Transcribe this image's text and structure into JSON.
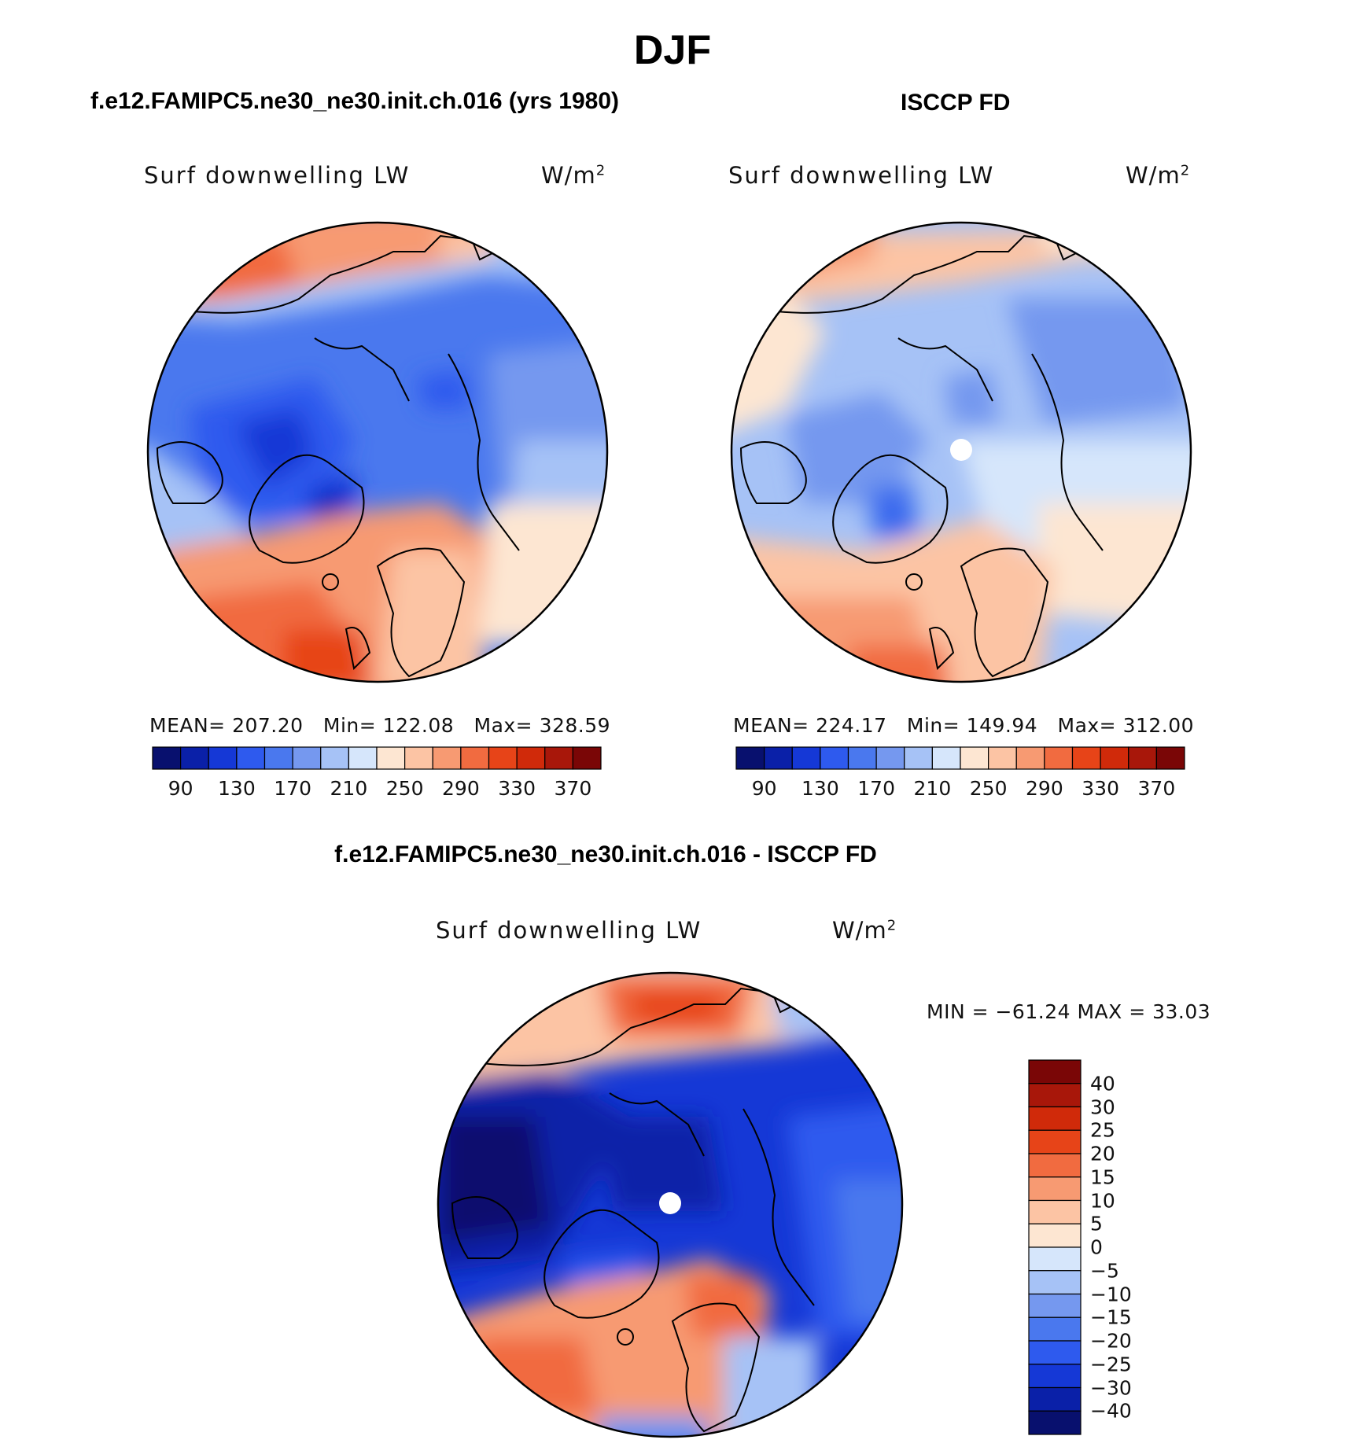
{
  "season": "DJF",
  "panels": [
    {
      "id": "model",
      "title": "f.e12.FAMIPC5.ne30_ne30.init.ch.016 (yrs 1980)",
      "variable": "Surf downwelling LW",
      "units_base": "W/m",
      "units_exp": "2",
      "stats": {
        "mean_label": "MEAN=",
        "mean": "207.20",
        "min_label": "Min=",
        "min": "122.08",
        "max_label": "Max=",
        "max": "328.59"
      },
      "colorbar_labels": [
        "90",
        "130",
        "170",
        "210",
        "250",
        "290",
        "330",
        "370"
      ]
    },
    {
      "id": "obs",
      "title": "ISCCP FD",
      "variable": "Surf downwelling LW",
      "units_base": "W/m",
      "units_exp": "2",
      "stats": {
        "mean_label": "MEAN=",
        "mean": "224.17",
        "min_label": "Min=",
        "min": "149.94",
        "max_label": "Max=",
        "max": "312.00"
      },
      "colorbar_labels": [
        "90",
        "130",
        "170",
        "210",
        "250",
        "290",
        "330",
        "370"
      ]
    }
  ],
  "difference": {
    "title": "f.e12.FAMIPC5.ne30_ne30.init.ch.016 - ISCCP FD",
    "variable": "Surf downwelling LW",
    "units_base": "W/m",
    "units_exp": "2",
    "minmax": "MIN = −61.24 MAX =   33.03",
    "colorbar_labels": [
      "40",
      "30",
      "25",
      "20",
      "15",
      "10",
      "5",
      "0",
      "−5",
      "−10",
      "−15",
      "−20",
      "−25",
      "−30",
      "−40"
    ]
  },
  "colors": {
    "abs_scale": [
      "#08106e",
      "#0a20a8",
      "#1538d6",
      "#2e5aee",
      "#4a78ee",
      "#7598ef",
      "#a6c2f6",
      "#d6e6fb",
      "#fde6d2",
      "#fcc4a4",
      "#f79a72",
      "#f16b40",
      "#e74418",
      "#d02a0a",
      "#a8170a",
      "#7a0606"
    ],
    "diff_scale": [
      "#7a0606",
      "#a8170a",
      "#d02a0a",
      "#e74418",
      "#f16b40",
      "#f79a72",
      "#fcc4a4",
      "#fde6d2",
      "#d6e6fb",
      "#a6c2f6",
      "#7598ef",
      "#4a78ee",
      "#2e5aee",
      "#1538d6",
      "#0a20a8",
      "#08106e"
    ]
  }
}
